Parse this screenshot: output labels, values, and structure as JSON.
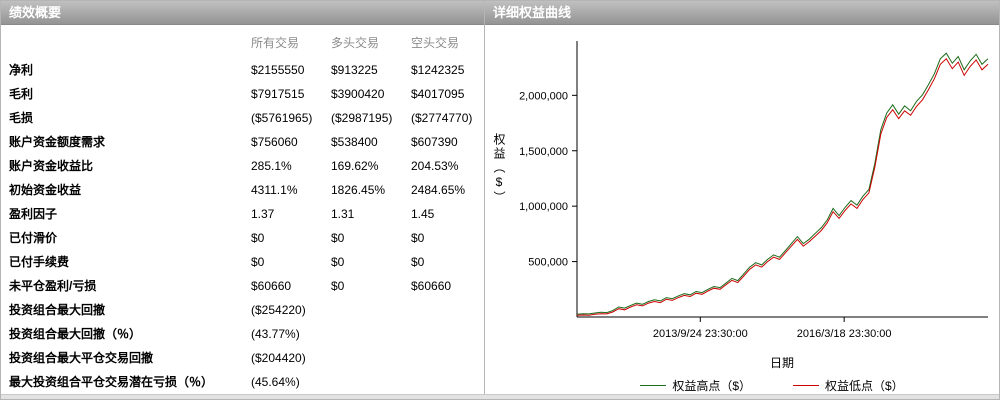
{
  "left_panel": {
    "title": "绩效概要",
    "columns": [
      "所有交易",
      "多头交易",
      "空头交易"
    ],
    "negative_color": "#cc0000",
    "rows": [
      {
        "label": "净利",
        "values": [
          "$2155550",
          "$913225",
          "$1242325"
        ]
      },
      {
        "label": "毛利",
        "values": [
          "$7917515",
          "$3900420",
          "$4017095"
        ]
      },
      {
        "label": "毛损",
        "values": [
          "($5761965)",
          "($2987195)",
          "($2774770)"
        ]
      },
      {
        "label": "账户资金额度需求",
        "values": [
          "$756060",
          "$538400",
          "$607390"
        ]
      },
      {
        "label": "账户资金收益比",
        "values": [
          "285.1%",
          "169.62%",
          "204.53%"
        ]
      },
      {
        "label": "初始资金收益",
        "values": [
          "4311.1%",
          "1826.45%",
          "2484.65%"
        ]
      },
      {
        "label": "盈利因子",
        "values": [
          "1.37",
          "1.31",
          "1.45"
        ]
      },
      {
        "label": "已付滑价",
        "values": [
          "$0",
          "$0",
          "$0"
        ]
      },
      {
        "label": "已付手续费",
        "values": [
          "$0",
          "$0",
          "$0"
        ]
      },
      {
        "label": "未平仓盈利/亏损",
        "values": [
          "$60660",
          "$0",
          "$60660"
        ]
      },
      {
        "label": "投资组合最大回撤",
        "values": [
          "($254220)",
          "",
          ""
        ]
      },
      {
        "label": "投资组合最大回撤（％）",
        "values": [
          "(43.77%)",
          "",
          ""
        ]
      },
      {
        "label": "投资组合最大平仓交易回撤",
        "values": [
          "($204420)",
          "",
          ""
        ]
      },
      {
        "label": "最大投资组合平仓交易潜在亏损（％）",
        "values": [
          "(45.64%)",
          "",
          ""
        ]
      }
    ]
  },
  "right_panel": {
    "title": "详细权益曲线",
    "chart_data": {
      "type": "line",
      "title": "详细权益曲线",
      "xlabel": "日期",
      "ylabel": "权益（$）",
      "ylim": [
        0,
        2400000
      ],
      "grid": false,
      "legend_position": "bottom",
      "yticks": [
        500000,
        1000000,
        1500000,
        2000000
      ],
      "ytick_labels": [
        "500,000",
        "1,000,000",
        "1,500,000",
        "2,000,000"
      ],
      "xtick_labels": [
        "2013/9/24 23:30:00",
        "2016/3/18 23:30:00"
      ],
      "xtick_positions": [
        0.3,
        0.65
      ],
      "legend": [
        {
          "name": "权益高点（$）",
          "color": "#1a6b1a"
        },
        {
          "name": "权益低点（$）",
          "color": "#cc0000"
        }
      ],
      "series": [
        {
          "name": "权益高点（$）",
          "color": "#1a6b1a",
          "values": [
            25000,
            30000,
            28000,
            36000,
            42000,
            40000,
            58000,
            90000,
            80000,
            105000,
            125000,
            115000,
            140000,
            155000,
            145000,
            175000,
            165000,
            190000,
            210000,
            200000,
            230000,
            220000,
            250000,
            275000,
            265000,
            305000,
            348000,
            328000,
            390000,
            450000,
            490000,
            470000,
            520000,
            560000,
            540000,
            600000,
            662000,
            725000,
            662000,
            702000,
            755000,
            805000,
            875000,
            980000,
            915000,
            988000,
            1050000,
            1010000,
            1090000,
            1150000,
            1385000,
            1690000,
            1840000,
            1915000,
            1830000,
            1905000,
            1860000,
            1945000,
            2005000,
            2095000,
            2195000,
            2330000,
            2380000,
            2290000,
            2350000,
            2230000,
            2310000,
            2370000,
            2280000,
            2330000
          ]
        },
        {
          "name": "权益低点（$）",
          "color": "#cc0000",
          "values": [
            15000,
            18000,
            16000,
            24000,
            30000,
            28000,
            45000,
            75000,
            65000,
            90000,
            110000,
            100000,
            125000,
            140000,
            130000,
            160000,
            150000,
            175000,
            195000,
            185000,
            215000,
            205000,
            235000,
            260000,
            250000,
            290000,
            330000,
            310000,
            370000,
            430000,
            470000,
            450000,
            500000,
            540000,
            520000,
            580000,
            640000,
            700000,
            640000,
            680000,
            730000,
            780000,
            850000,
            950000,
            890000,
            960000,
            1020000,
            980000,
            1060000,
            1120000,
            1350000,
            1650000,
            1800000,
            1870000,
            1790000,
            1860000,
            1820000,
            1900000,
            1960000,
            2050000,
            2150000,
            2280000,
            2330000,
            2240000,
            2300000,
            2180000,
            2260000,
            2320000,
            2230000,
            2280000
          ]
        }
      ]
    }
  }
}
